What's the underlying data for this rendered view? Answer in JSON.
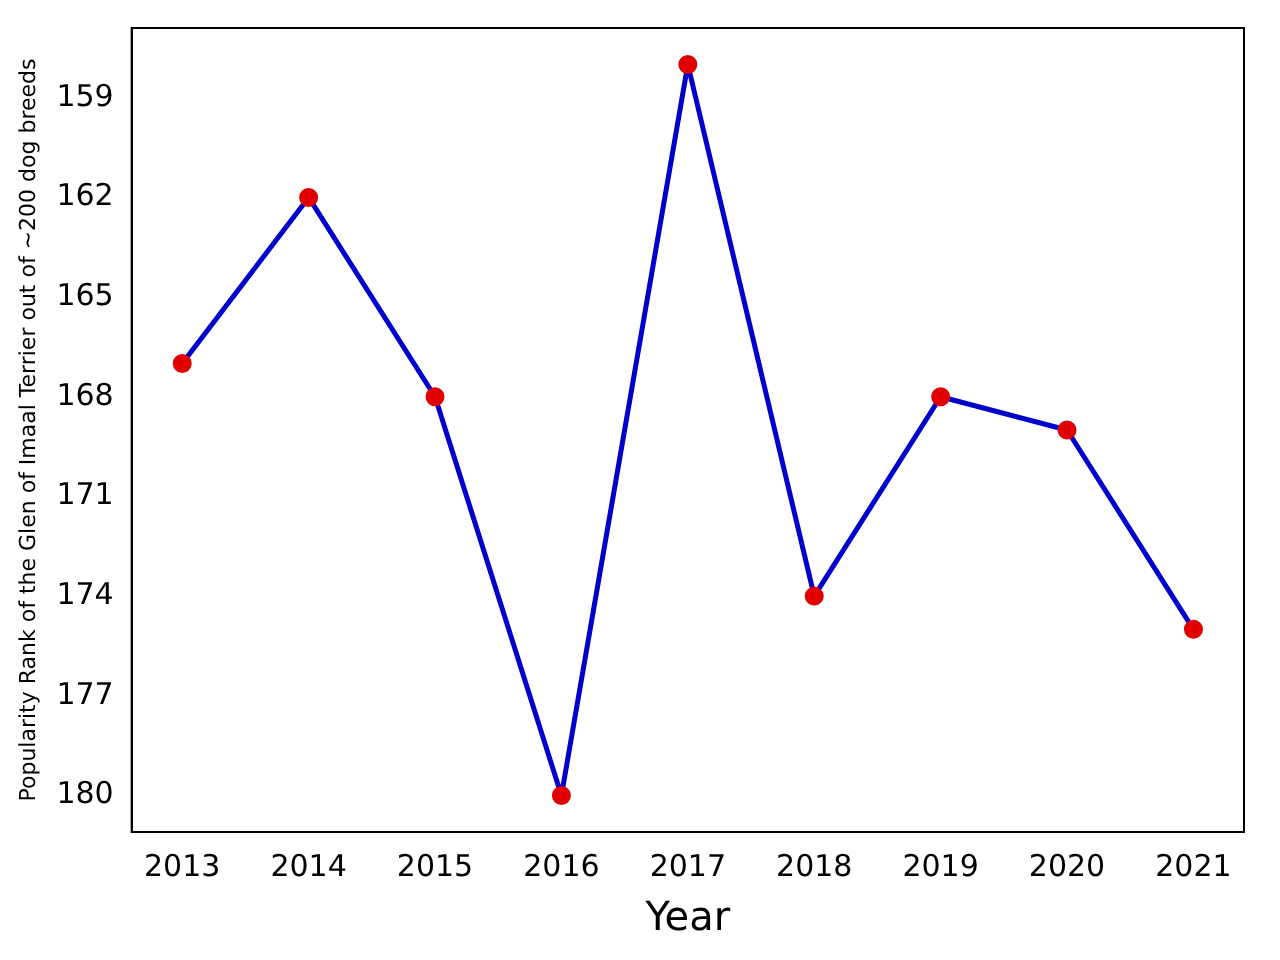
{
  "chart_data": {
    "type": "line",
    "xlabel": "Year",
    "ylabel": "Popularity Rank of the Glen of Imaal Terrier out of ~200 dog breeds",
    "x": [
      2013,
      2014,
      2015,
      2016,
      2017,
      2018,
      2019,
      2020,
      2021
    ],
    "series": [
      {
        "color": "#0000cd",
        "colors": [
          "#e00000",
          "#e00000",
          "#e00000",
          "#e00000",
          "#e00000",
          "#e00000",
          "#e00000",
          "#e00000",
          "#e00000"
        ],
        "values": [
          167,
          162,
          168,
          180,
          158,
          174,
          168,
          169,
          175
        ]
      }
    ],
    "xlim": [
      2012.6,
      2021.4
    ],
    "xticks": [
      2013,
      2014,
      2015,
      2016,
      2017,
      2018,
      2019,
      2020,
      2021
    ],
    "ylim": [
      181.1,
      156.9
    ],
    "yticks": [
      159,
      162,
      165,
      168,
      171,
      174,
      177,
      180
    ],
    "grid": false,
    "legend": false,
    "marker": "circle",
    "line_style": "solid"
  }
}
